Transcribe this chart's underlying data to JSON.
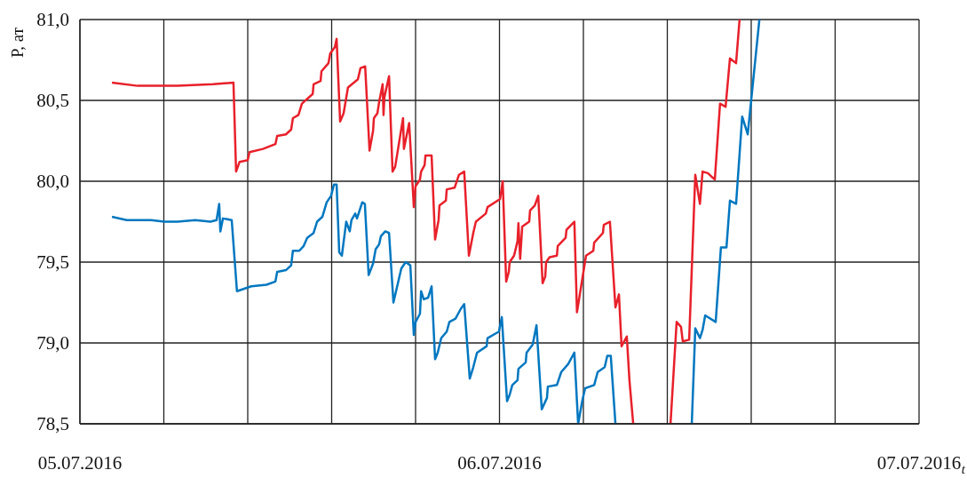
{
  "chart_data": {
    "type": "line",
    "xlabel": "t",
    "ylabel": "P, ат",
    "xlim": [
      "2016-07-05",
      "2016-07-07"
    ],
    "ylim": [
      78.5,
      81
    ],
    "xticks": [
      {
        "value": "2016-07-05",
        "label": "05.07.2016"
      },
      {
        "value": "2016-07-05T04:48",
        "label": null
      },
      {
        "value": "2016-07-05T09:36",
        "label": null
      },
      {
        "value": "2016-07-05T14:24",
        "label": null
      },
      {
        "value": "2016-07-05T19:12",
        "label": null
      },
      {
        "value": "2016-07-06",
        "label": "06.07.2016"
      },
      {
        "value": "2016-07-06T04:48",
        "label": null
      },
      {
        "value": "2016-07-06T09:36",
        "label": null
      },
      {
        "value": "2016-07-06T14:24",
        "label": null
      },
      {
        "value": "2016-07-06T19:12",
        "label": null
      },
      {
        "value": "2016-07-07",
        "label": "07.07.2016"
      }
    ],
    "yticks": [
      {
        "value": 78.5,
        "label": "78,5"
      },
      {
        "value": 79,
        "label": "79,0"
      },
      {
        "value": 79.5,
        "label": "79,5"
      },
      {
        "value": 80,
        "label": "80,0"
      },
      {
        "value": 80.5,
        "label": "80,5"
      },
      {
        "value": 81,
        "label": "81,0"
      }
    ],
    "grid": true,
    "marker": "none",
    "line_style": "solid",
    "series": [
      {
        "color": "#e8202a",
        "x": [
          "2016-07-05T01:50",
          "2016-07-05T03:18",
          "2016-07-05T05:35",
          "2016-07-05T07:37",
          "2016-07-05T08:47",
          "2016-07-05T08:56",
          "2016-07-05T09:08",
          "2016-07-05T09:36",
          "2016-07-05T09:42",
          "2016-07-05T10:28",
          "2016-07-05T11:11",
          "2016-07-05T11:17",
          "2016-07-05T11:47",
          "2016-07-05T12:05",
          "2016-07-05T12:11",
          "2016-07-05T12:30",
          "2016-07-05T12:42",
          "2016-07-05T13:19",
          "2016-07-05T13:22",
          "2016-07-05T13:46",
          "2016-07-05T13:49",
          "2016-07-05T14:13",
          "2016-07-05T14:19",
          "2016-07-05T14:35",
          "2016-07-05T14:41",
          "2016-07-05T14:53",
          "2016-07-05T15:05",
          "2016-07-05T15:20",
          "2016-07-05T15:54",
          "2016-07-05T16:03",
          "2016-07-05T16:19",
          "2016-07-05T16:34",
          "2016-07-05T16:46",
          "2016-07-05T16:49",
          "2016-07-05T17:01",
          "2016-07-05T17:07",
          "2016-07-05T17:19",
          "2016-07-05T17:22",
          "2016-07-05T17:25",
          "2016-07-05T17:41",
          "2016-07-05T17:53",
          "2016-07-05T18:02",
          "2016-07-05T18:29",
          "2016-07-05T18:32",
          "2016-07-05T18:50",
          "2016-07-05T19:06",
          "2016-07-05T19:12",
          "2016-07-05T19:27",
          "2016-07-05T19:31",
          "2016-07-05T19:43",
          "2016-07-05T19:46",
          "2016-07-05T20:07",
          "2016-07-05T20:19",
          "2016-07-05T20:31",
          "2016-07-05T20:34",
          "2016-07-05T20:56",
          "2016-07-05T20:59",
          "2016-07-05T21:26",
          "2016-07-05T21:41",
          "2016-07-05T21:59",
          "2016-07-05T22:15",
          "2016-07-05T22:30",
          "2016-07-05T22:39",
          "2016-07-05T23:13",
          "2016-07-05T23:19",
          "2016-07-06T00:02",
          "2016-07-06T00:11",
          "2016-07-06T00:23",
          "2016-07-06T00:32",
          "2016-07-06T00:35",
          "2016-07-06T00:50",
          "2016-07-06T01:02",
          "2016-07-06T01:05",
          "2016-07-06T01:11",
          "2016-07-06T01:18",
          "2016-07-06T01:42",
          "2016-07-06T01:45",
          "2016-07-06T02:01",
          "2016-07-06T02:13",
          "2016-07-06T02:28",
          "2016-07-06T02:37",
          "2016-07-06T02:40",
          "2016-07-06T02:52",
          "2016-07-06T03:17",
          "2016-07-06T03:20",
          "2016-07-06T03:47",
          "2016-07-06T03:50",
          "2016-07-06T04:17",
          "2016-07-06T04:26",
          "2016-07-06T04:57",
          "2016-07-06T05:22",
          "2016-07-06T05:25",
          "2016-07-06T05:55",
          "2016-07-06T05:58",
          "2016-07-06T06:19",
          "2016-07-06T06:38",
          "2016-07-06T06:50",
          "2016-07-06T06:59",
          "2016-07-06T07:17",
          "2016-07-06T07:26",
          "2016-07-06T07:39",
          "2016-07-06T08:42",
          "2016-07-06T09:47",
          "2016-07-06T10:08",
          "2016-07-06T10:23",
          "2016-07-06T10:29",
          "2016-07-06T10:51",
          "2016-07-06T11:12",
          "2016-07-06T11:28",
          "2016-07-06T11:37",
          "2016-07-06T11:55",
          "2016-07-06T12:19",
          "2016-07-06T12:37",
          "2016-07-06T12:56",
          "2016-07-06T13:11",
          "2016-07-06T13:32",
          "2016-07-06T13:44"
        ],
        "values": [
          80.61,
          80.59,
          80.59,
          80.6,
          80.61,
          80.06,
          80.12,
          80.13,
          80.18,
          80.2,
          80.23,
          80.28,
          80.29,
          80.32,
          80.39,
          80.41,
          80.48,
          80.54,
          80.6,
          80.62,
          80.68,
          80.73,
          80.79,
          80.83,
          80.88,
          80.37,
          80.42,
          80.58,
          80.63,
          80.7,
          80.71,
          80.19,
          80.31,
          80.39,
          80.42,
          80.49,
          80.6,
          80.41,
          80.52,
          80.65,
          80.06,
          80.09,
          80.39,
          80.2,
          80.36,
          79.84,
          79.97,
          80.01,
          80.06,
          80.1,
          80.16,
          80.16,
          79.64,
          79.76,
          79.85,
          79.88,
          79.95,
          79.96,
          80.04,
          80.06,
          79.54,
          79.68,
          79.75,
          79.8,
          79.84,
          79.89,
          80.0,
          79.38,
          79.44,
          79.5,
          79.54,
          79.63,
          79.74,
          79.52,
          79.72,
          79.75,
          79.82,
          79.85,
          79.91,
          79.37,
          79.41,
          79.5,
          79.53,
          79.54,
          79.6,
          79.65,
          79.7,
          79.75,
          79.19,
          79.54,
          79.57,
          79.62,
          79.68,
          79.73,
          79.75,
          79.22,
          79.3,
          78.98,
          79.04,
          78.77,
          78.5,
          null,
          78.5,
          79.13,
          79.1,
          79.01,
          79.02,
          80.04,
          79.86,
          80.06,
          80.05,
          80.01,
          80.48,
          80.46,
          80.76,
          80.73,
          81.0
        ]
      },
      {
        "color": "#0077c0",
        "x": [
          "2016-07-05T01:50",
          "2016-07-05T02:41",
          "2016-07-05T04:04",
          "2016-07-05T04:50",
          "2016-07-05T05:35",
          "2016-07-05T06:36",
          "2016-07-05T07:28",
          "2016-07-05T07:49",
          "2016-07-05T07:58",
          "2016-07-05T08:02",
          "2016-07-05T08:11",
          "2016-07-05T08:41",
          "2016-07-05T08:59",
          "2016-07-05T09:48",
          "2016-07-05T10:40",
          "2016-07-05T11:11",
          "2016-07-05T11:17",
          "2016-07-05T11:47",
          "2016-07-05T12:05",
          "2016-07-05T12:11",
          "2016-07-05T12:33",
          "2016-07-05T12:48",
          "2016-07-05T13:00",
          "2016-07-05T13:22",
          "2016-07-05T13:34",
          "2016-07-05T13:52",
          "2016-07-05T14:07",
          "2016-07-05T14:22",
          "2016-07-05T14:32",
          "2016-07-05T14:41",
          "2016-07-05T14:50",
          "2016-07-05T14:59",
          "2016-07-05T15:14",
          "2016-07-05T15:26",
          "2016-07-05T15:32",
          "2016-07-05T15:45",
          "2016-07-05T15:51",
          "2016-07-05T16:09",
          "2016-07-05T16:18",
          "2016-07-05T16:31",
          "2016-07-05T16:46",
          "2016-07-05T16:55",
          "2016-07-05T17:07",
          "2016-07-05T17:13",
          "2016-07-05T17:28",
          "2016-07-05T17:41",
          "2016-07-05T17:56",
          "2016-07-05T18:23",
          "2016-07-05T18:38",
          "2016-07-05T18:54",
          "2016-07-05T19:06",
          "2016-07-05T19:12",
          "2016-07-05T19:27",
          "2016-07-05T19:31",
          "2016-07-05T19:40",
          "2016-07-05T19:55",
          "2016-07-05T20:07",
          "2016-07-05T20:19",
          "2016-07-05T20:28",
          "2016-07-05T20:40",
          "2016-07-05T20:59",
          "2016-07-05T21:08",
          "2016-07-05T21:29",
          "2016-07-05T21:47",
          "2016-07-05T21:59",
          "2016-07-05T22:18",
          "2016-07-05T22:30",
          "2016-07-05T22:43",
          "2016-07-05T23:16",
          "2016-07-05T23:19",
          "2016-07-05T23:58",
          "2016-07-06T00:08",
          "2016-07-06T00:26",
          "2016-07-06T00:35",
          "2016-07-06T00:44",
          "2016-07-06T01:02",
          "2016-07-06T01:05",
          "2016-07-06T01:30",
          "2016-07-06T01:33",
          "2016-07-06T01:54",
          "2016-07-06T02:07",
          "2016-07-06T02:25",
          "2016-07-06T02:43",
          "2016-07-06T02:46",
          "2016-07-06T03:17",
          "2016-07-06T03:32",
          "2016-07-06T03:56",
          "2016-07-06T04:17",
          "2016-07-06T04:30",
          "2016-07-06T04:45",
          "2016-07-06T04:54",
          "2016-07-06T05:25",
          "2016-07-06T05:37",
          "2016-07-06T06:01",
          "2016-07-06T06:10",
          "2016-07-06T06:22",
          "2016-07-06T06:38",
          "2016-07-06T08:48",
          "2016-07-06T11:00",
          "2016-07-06T11:12",
          "2016-07-06T11:28",
          "2016-07-06T11:37",
          "2016-07-06T11:46",
          "2016-07-06T12:22",
          "2016-07-06T12:40",
          "2016-07-06T12:59",
          "2016-07-06T13:11",
          "2016-07-06T13:32",
          "2016-07-06T13:53",
          "2016-07-06T14:12",
          "2016-07-06T14:52"
        ],
        "values": [
          79.78,
          79.76,
          79.76,
          79.75,
          79.75,
          79.76,
          79.75,
          79.76,
          79.86,
          79.69,
          79.77,
          79.76,
          79.32,
          79.35,
          79.36,
          79.38,
          79.44,
          79.45,
          79.48,
          79.57,
          79.57,
          79.6,
          79.65,
          79.68,
          79.75,
          79.78,
          79.87,
          79.91,
          79.98,
          79.98,
          79.56,
          79.54,
          79.75,
          79.69,
          79.76,
          79.8,
          79.77,
          79.87,
          79.86,
          79.42,
          79.49,
          79.58,
          79.61,
          79.66,
          79.69,
          79.68,
          79.25,
          79.46,
          79.5,
          79.48,
          79.05,
          79.13,
          79.18,
          79.32,
          79.27,
          79.28,
          79.35,
          78.9,
          78.94,
          79.03,
          79.07,
          79.13,
          79.15,
          79.21,
          79.24,
          78.78,
          78.85,
          78.94,
          78.98,
          79.03,
          79.07,
          79.16,
          78.64,
          78.68,
          78.74,
          78.77,
          78.84,
          78.88,
          78.94,
          78.99,
          79.11,
          78.59,
          78.66,
          78.73,
          78.74,
          78.82,
          78.87,
          78.94,
          78.5,
          78.65,
          78.72,
          78.74,
          78.82,
          78.85,
          78.92,
          78.92,
          78.5,
          null,
          78.5,
          79.09,
          79.03,
          79.08,
          79.17,
          79.13,
          79.59,
          79.59,
          79.88,
          79.86,
          80.4,
          80.29,
          81.0
        ]
      }
    ]
  }
}
